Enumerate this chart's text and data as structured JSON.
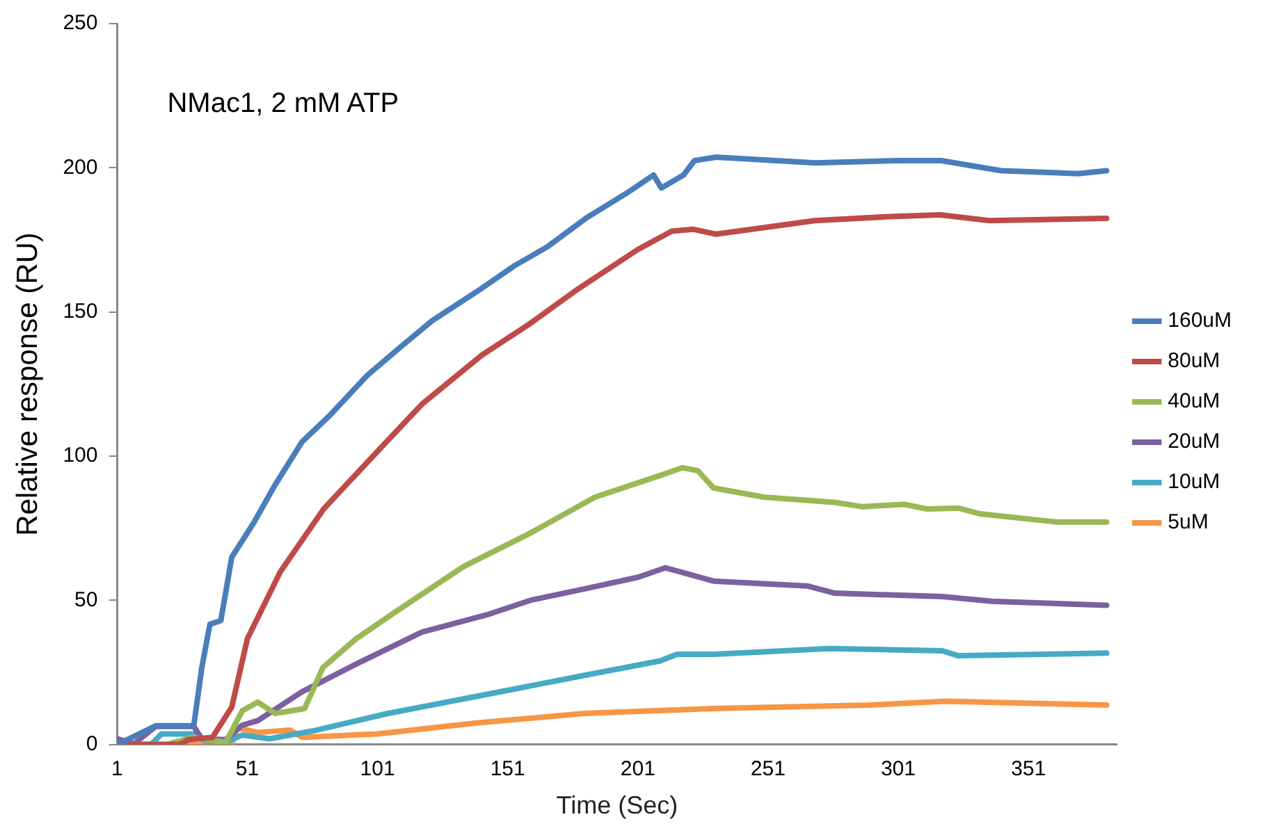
{
  "chart_data": {
    "type": "line",
    "xlabel": "Time (Sec)",
    "ylabel": "Relative response (RU)",
    "annotations": [
      "NMac1, 2 mM ATP"
    ],
    "xlim": [
      1,
      385
    ],
    "xticks": [
      1,
      51,
      101,
      151,
      201,
      251,
      301,
      351
    ],
    "ylim": [
      0,
      250
    ],
    "yticks": [
      0,
      50,
      100,
      150,
      200,
      250
    ],
    "grid": false,
    "legend": "right",
    "marker": "none",
    "line_style": "solid",
    "series": [
      {
        "name": "160uM",
        "color": "#4a7ebb",
        "x": [
          1,
          15.8,
          30.4,
          33.5,
          36.6,
          40.8,
          45,
          53.3,
          61.6,
          72,
          82.5,
          97,
          110,
          122,
          139,
          153.5,
          166,
          181,
          197.5,
          207,
          210,
          218.5,
          222.7,
          231,
          269,
          301,
          317.5,
          340.6,
          370,
          381
        ],
        "values": [
          0,
          6.5,
          6.5,
          26.7,
          41.7,
          43,
          65,
          76.7,
          90,
          105,
          114,
          128,
          138,
          147,
          157,
          166,
          172.5,
          182.5,
          191.7,
          197.5,
          193,
          197.5,
          202.5,
          203.7,
          201.7,
          202.5,
          202.5,
          199,
          198,
          199
        ]
      },
      {
        "name": "80uM",
        "color": "#be4b48",
        "x": [
          1,
          25,
          28.3,
          37.6,
          45,
          51,
          63.7,
          80.3,
          101,
          118,
          141,
          159.6,
          178,
          201,
          214,
          222,
          231,
          269,
          296,
          317,
          336,
          381
        ],
        "values": [
          0,
          0,
          1.7,
          2.5,
          13,
          36.7,
          60,
          81.7,
          101.7,
          118,
          135,
          146,
          158,
          171.7,
          178,
          178.7,
          177,
          181.7,
          183,
          183.7,
          181.7,
          182.5
        ]
      },
      {
        "name": "40uM",
        "color": "#98b954",
        "x": [
          1,
          20,
          30,
          42.7,
          49,
          55,
          61.6,
          73,
          80,
          92.8,
          109,
          134,
          159.6,
          184.5,
          209.5,
          218,
          224,
          230,
          249.5,
          276.6,
          287,
          303.4,
          312,
          324,
          332.5,
          361.6,
          381
        ],
        "values": [
          0,
          0,
          2.5,
          0.8,
          11.7,
          14.7,
          10.8,
          12.5,
          26.7,
          36.7,
          46.7,
          61.7,
          73.3,
          85.8,
          93.3,
          96,
          95,
          89,
          85.8,
          84,
          82.5,
          83.3,
          81.7,
          82,
          80,
          77.2,
          77.2
        ]
      },
      {
        "name": "20uM",
        "color": "#7d60a0",
        "x": [
          1,
          7.5,
          15.8,
          30.4,
          33.5,
          42.7,
          49,
          55,
          72,
          93,
          118,
          143,
          159.6,
          180.5,
          201,
          211.6,
          230,
          266,
          276.6,
          318,
          337,
          381
        ],
        "values": [
          2,
          0.3,
          6.3,
          6.3,
          2,
          1.7,
          6.7,
          8.3,
          18.3,
          28,
          39,
          45,
          50,
          54,
          58,
          61.3,
          56.7,
          55,
          52.5,
          51.3,
          49.7,
          48.3
        ]
      },
      {
        "name": "10uM",
        "color": "#46aac5",
        "x": [
          1,
          14,
          18,
          30.4,
          34.6,
          42.7,
          49,
          59.5,
          76,
          105,
          139,
          180.5,
          209.5,
          216,
          230,
          274.5,
          318,
          324,
          381
        ],
        "values": [
          0,
          0,
          3.7,
          3.7,
          1.3,
          0.8,
          3.3,
          2,
          4.7,
          10.8,
          16.7,
          24,
          29,
          31.3,
          31.3,
          33.3,
          32.5,
          30.8,
          31.7
        ]
      },
      {
        "name": "5uM",
        "color": "#f79646",
        "x": [
          1,
          45,
          47,
          55,
          67.5,
          72,
          101,
          139,
          180.5,
          230,
          290,
          319,
          381
        ],
        "values": [
          0,
          0,
          5.8,
          4.2,
          5,
          2.5,
          3.7,
          7.5,
          10.8,
          12.5,
          13.7,
          15,
          13.7
        ]
      }
    ]
  }
}
